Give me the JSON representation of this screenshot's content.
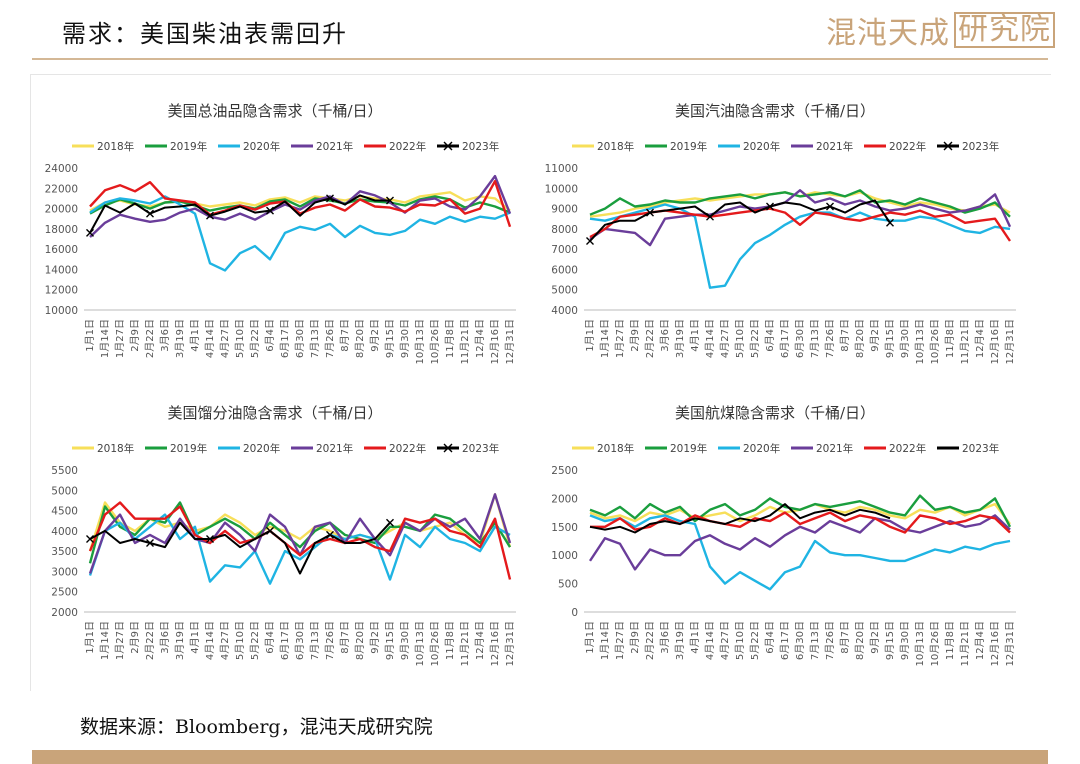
{
  "header": {
    "title": "需求：美国柴油表需回升",
    "logo_text": "混沌天成",
    "logo_boxed_text": "研究院",
    "accent_color": "#c9a47a"
  },
  "footer": {
    "source": "数据来源：Bloomberg，混沌天成研究院"
  },
  "series_colors": {
    "2018年": "#f7df5a",
    "2019年": "#1a9e3e",
    "2020年": "#1fb4e3",
    "2021年": "#6a3d9a",
    "2022年": "#e41a1c",
    "2023年": "#000000"
  },
  "chart_data": [
    {
      "type": "line",
      "title": "美国总油品隐含需求（千桶/日）",
      "ylim": [
        10000,
        24000
      ],
      "yticks": [
        10000,
        12000,
        14000,
        16000,
        18000,
        20000,
        22000,
        24000
      ],
      "grid": false,
      "legend": "top",
      "categories": [
        "1月1日",
        "1月14日",
        "1月27日",
        "2月9日",
        "2月22日",
        "3月6日",
        "3月19日",
        "4月1日",
        "4月14日",
        "4月27日",
        "5月10日",
        "5月22日",
        "6月4日",
        "6月17日",
        "6月30日",
        "7月13日",
        "7月26日",
        "8月7日",
        "8月20日",
        "9月2日",
        "9月15日",
        "9月30日",
        "10月13日",
        "10月26日",
        "11月8日",
        "11月21日",
        "12月4日",
        "12月16日",
        "12月31日"
      ],
      "series": [
        {
          "name": "2018年",
          "values": [
            19800,
            20600,
            20800,
            20400,
            20200,
            20600,
            20800,
            20500,
            20200,
            20400,
            20600,
            20300,
            20900,
            21100,
            20600,
            21200,
            21000,
            20800,
            21200,
            21000,
            20900,
            20600,
            21200,
            21400,
            21600,
            20800,
            21200,
            21000,
            19800
          ]
        },
        {
          "name": "2019年",
          "values": [
            19500,
            20300,
            20900,
            20500,
            20000,
            20600,
            20700,
            20300,
            19800,
            20100,
            20300,
            20000,
            20700,
            20900,
            20200,
            21000,
            20800,
            20500,
            20900,
            20700,
            20600,
            20300,
            20900,
            21200,
            20900,
            20100,
            20600,
            20200,
            19600
          ]
        },
        {
          "name": "2020年",
          "values": [
            19600,
            20600,
            21000,
            20800,
            20500,
            21200,
            20400,
            19500,
            14600,
            13900,
            15600,
            16300,
            15000,
            17600,
            18200,
            17900,
            18500,
            17200,
            18300,
            17600,
            17400,
            17800,
            18900,
            18500,
            19200,
            18700,
            19200,
            19000,
            19600
          ]
        },
        {
          "name": "2021年",
          "values": [
            17200,
            18600,
            19400,
            19000,
            18700,
            18900,
            19600,
            20000,
            19200,
            18900,
            19500,
            18900,
            19700,
            20400,
            19900,
            20800,
            21200,
            20400,
            21700,
            21300,
            20600,
            19600,
            20800,
            21000,
            20200,
            19900,
            21200,
            23200,
            19500
          ]
        },
        {
          "name": "2022年",
          "values": [
            20200,
            21800,
            22300,
            21700,
            22600,
            21000,
            20800,
            20600,
            19400,
            19800,
            20300,
            19900,
            20500,
            20700,
            19500,
            20100,
            20400,
            19800,
            20900,
            20200,
            20100,
            19700,
            20400,
            20300,
            20900,
            19500,
            20000,
            22700,
            18200
          ]
        },
        {
          "name": "2023年",
          "values": [
            17600,
            20300,
            19600,
            20500,
            19500,
            20100,
            20200,
            20400,
            19300,
            19700,
            20200,
            19600,
            19800,
            20700,
            19300,
            20600,
            21000,
            20400,
            21300,
            20800,
            20800,
            null,
            null,
            null,
            null,
            null,
            null,
            null,
            null
          ]
        }
      ]
    },
    {
      "type": "line",
      "title": "美国汽油隐含需求（千桶/日）",
      "ylim": [
        4000,
        11000
      ],
      "yticks": [
        4000,
        5000,
        6000,
        7000,
        8000,
        9000,
        10000,
        11000
      ],
      "grid": false,
      "legend": "top",
      "categories": [
        "1月1日",
        "1月14日",
        "1月27日",
        "2月9日",
        "2月22日",
        "3月6日",
        "3月19日",
        "4月1日",
        "4月14日",
        "4月27日",
        "5月10日",
        "5月22日",
        "6月4日",
        "6月17日",
        "6月30日",
        "7月13日",
        "7月26日",
        "8月7日",
        "8月20日",
        "9月2日",
        "9月15日",
        "9月30日",
        "10月13日",
        "10月26日",
        "11月8日",
        "11月21日",
        "12月4日",
        "12月16日",
        "12月31日"
      ],
      "series": [
        {
          "name": "2018年",
          "values": [
            8600,
            8700,
            8800,
            9000,
            9100,
            9300,
            9400,
            9500,
            9400,
            9500,
            9600,
            9700,
            9700,
            9800,
            9600,
            9800,
            9700,
            9600,
            9800,
            9500,
            9300,
            9100,
            9300,
            9200,
            9000,
            8900,
            9100,
            9200,
            8800
          ]
        },
        {
          "name": "2019年",
          "values": [
            8700,
            9000,
            9500,
            9100,
            9200,
            9400,
            9300,
            9300,
            9500,
            9600,
            9700,
            9500,
            9700,
            9800,
            9600,
            9700,
            9800,
            9600,
            9900,
            9300,
            9400,
            9200,
            9500,
            9300,
            9100,
            8800,
            9000,
            9300,
            8600
          ]
        },
        {
          "name": "2020年",
          "values": [
            8500,
            8400,
            8600,
            8800,
            9000,
            9200,
            9000,
            8600,
            5100,
            5200,
            6500,
            7300,
            7700,
            8200,
            8600,
            8800,
            8800,
            8500,
            8800,
            8500,
            8400,
            8400,
            8600,
            8500,
            8200,
            7900,
            7800,
            8100,
            8000
          ]
        },
        {
          "name": "2021年",
          "values": [
            7500,
            8000,
            7900,
            7800,
            7200,
            8500,
            8600,
            8700,
            8700,
            8900,
            9100,
            9000,
            9100,
            9300,
            9900,
            9300,
            9500,
            9200,
            9400,
            9100,
            8900,
            9000,
            9200,
            9000,
            8800,
            8900,
            9100,
            9700,
            8100
          ]
        },
        {
          "name": "2022年",
          "values": [
            7600,
            8000,
            8600,
            8700,
            8800,
            8900,
            8800,
            8700,
            8600,
            8700,
            8800,
            8900,
            9000,
            8800,
            8200,
            8800,
            8700,
            8500,
            8400,
            8600,
            8800,
            8700,
            8900,
            8600,
            8700,
            8300,
            8400,
            8500,
            7400
          ]
        },
        {
          "name": "2023年",
          "values": [
            7400,
            8200,
            8400,
            8400,
            8800,
            8900,
            9000,
            9100,
            8600,
            9200,
            9300,
            8800,
            9100,
            9300,
            9200,
            8900,
            9100,
            8800,
            9200,
            9400,
            8300,
            null,
            null,
            null,
            null,
            null,
            null,
            null,
            null
          ]
        }
      ]
    },
    {
      "type": "line",
      "title": "美国馏分油隐含需求（千桶/日）",
      "ylim": [
        2000,
        5500
      ],
      "yticks": [
        2000,
        2500,
        3000,
        3500,
        4000,
        4500,
        5000,
        5500
      ],
      "grid": false,
      "legend": "top",
      "categories": [
        "1月1日",
        "1月14日",
        "1月27日",
        "2月9日",
        "2月22日",
        "3月6日",
        "3月19日",
        "4月1日",
        "4月14日",
        "4月27日",
        "5月10日",
        "5月22日",
        "6月4日",
        "6月17日",
        "6月30日",
        "7月13日",
        "7月26日",
        "8月7日",
        "8月20日",
        "9月2日",
        "9月15日",
        "9月30日",
        "10月13日",
        "10月26日",
        "11月8日",
        "11月21日",
        "12月4日",
        "12月16日",
        "12月31日"
      ],
      "series": [
        {
          "name": "2018年",
          "values": [
            3500,
            4700,
            4200,
            4000,
            4300,
            4100,
            4200,
            4000,
            4100,
            4400,
            4200,
            3900,
            4100,
            4000,
            3800,
            4100,
            4000,
            3800,
            3900,
            3800,
            4000,
            4200,
            4000,
            4100,
            4200,
            3900,
            3700,
            4900,
            3600
          ]
        },
        {
          "name": "2019年",
          "values": [
            3200,
            4600,
            4100,
            3900,
            4300,
            4200,
            4700,
            3900,
            4100,
            4300,
            4100,
            3800,
            4200,
            3900,
            3600,
            4000,
            4200,
            3900,
            3800,
            3700,
            4100,
            4100,
            4000,
            4400,
            4300,
            4000,
            3700,
            4200,
            3600
          ]
        },
        {
          "name": "2020年",
          "values": [
            2900,
            4000,
            4200,
            3800,
            4100,
            4400,
            3800,
            4100,
            2750,
            3150,
            3100,
            3500,
            2700,
            3500,
            3300,
            3600,
            3900,
            3800,
            3900,
            3800,
            2800,
            3900,
            3600,
            4100,
            3800,
            3700,
            3500,
            4100,
            3900
          ]
        },
        {
          "name": "2021年",
          "values": [
            2950,
            4000,
            4400,
            3700,
            3900,
            3700,
            4300,
            3800,
            3700,
            4200,
            3900,
            3500,
            4400,
            4100,
            3400,
            4100,
            4200,
            3700,
            4300,
            3800,
            3400,
            4200,
            4000,
            4300,
            4100,
            4300,
            3800,
            4900,
            3700
          ]
        },
        {
          "name": "2022年",
          "values": [
            3500,
            4400,
            4700,
            4300,
            4300,
            4300,
            4600,
            3900,
            3700,
            4000,
            3700,
            3800,
            4000,
            3700,
            3400,
            3700,
            3800,
            3700,
            3800,
            3600,
            3500,
            4300,
            4200,
            4300,
            4000,
            3900,
            3600,
            4300,
            2800
          ]
        },
        {
          "name": "2023年",
          "values": [
            3800,
            4000,
            3700,
            3800,
            3700,
            3600,
            4200,
            3800,
            3800,
            3900,
            3600,
            3800,
            4000,
            3700,
            2950,
            3700,
            3900,
            3700,
            3700,
            3800,
            4200,
            null,
            null,
            null,
            null,
            null,
            null,
            null,
            null
          ]
        }
      ]
    },
    {
      "type": "line",
      "title": "美国航煤隐含需求（千桶/日）",
      "ylim": [
        0,
        2500
      ],
      "yticks": [
        0,
        500,
        1000,
        1500,
        2000,
        2500
      ],
      "grid": false,
      "legend": "top",
      "categories": [
        "1月1日",
        "1月14日",
        "1月27日",
        "2月9日",
        "2月22日",
        "3月6日",
        "3月19日",
        "4月1日",
        "4月14日",
        "4月27日",
        "5月10日",
        "5月22日",
        "6月4日",
        "6月17日",
        "6月30日",
        "7月13日",
        "7月26日",
        "8月7日",
        "8月20日",
        "9月2日",
        "9月15日",
        "9月30日",
        "10月13日",
        "10月26日",
        "11月8日",
        "11月21日",
        "12月4日",
        "12月16日",
        "12月31日"
      ],
      "series": [
        {
          "name": "2018年",
          "values": [
            1750,
            1650,
            1700,
            1600,
            1750,
            1700,
            1800,
            1650,
            1700,
            1750,
            1600,
            1700,
            1850,
            1750,
            1800,
            1900,
            1800,
            1750,
            1850,
            1800,
            1700,
            1650,
            1800,
            1750,
            1850,
            1700,
            1800,
            1900,
            1550
          ]
        },
        {
          "name": "2019年",
          "values": [
            1800,
            1700,
            1850,
            1650,
            1900,
            1750,
            1850,
            1600,
            1800,
            1900,
            1700,
            1800,
            2000,
            1850,
            1800,
            1900,
            1850,
            1900,
            1950,
            1850,
            1750,
            1700,
            2050,
            1800,
            1850,
            1750,
            1800,
            2000,
            1500
          ]
        },
        {
          "name": "2020年",
          "values": [
            1700,
            1600,
            1650,
            1500,
            1650,
            1700,
            1600,
            1550,
            800,
            500,
            700,
            550,
            400,
            700,
            800,
            1250,
            1050,
            1000,
            1000,
            950,
            900,
            900,
            1000,
            1100,
            1050,
            1150,
            1100,
            1200,
            1250
          ]
        },
        {
          "name": "2021年",
          "values": [
            900,
            1300,
            1200,
            750,
            1100,
            1000,
            1000,
            1250,
            1350,
            1200,
            1100,
            1300,
            1150,
            1350,
            1500,
            1400,
            1600,
            1500,
            1400,
            1650,
            1600,
            1450,
            1400,
            1500,
            1600,
            1500,
            1550,
            1700,
            1450
          ]
        },
        {
          "name": "2022年",
          "values": [
            1500,
            1500,
            1650,
            1450,
            1500,
            1650,
            1550,
            1700,
            1600,
            1550,
            1500,
            1650,
            1600,
            1750,
            1550,
            1650,
            1750,
            1600,
            1700,
            1650,
            1500,
            1400,
            1700,
            1650,
            1550,
            1600,
            1700,
            1650,
            1400
          ]
        },
        {
          "name": "2023年",
          "values": [
            1500,
            1450,
            1500,
            1400,
            1550,
            1600,
            1550,
            1650,
            1600,
            1550,
            1650,
            1600,
            1700,
            1900,
            1650,
            1750,
            1800,
            1700,
            1800,
            1750,
            1650,
            null,
            null,
            null,
            null,
            null,
            null,
            null,
            null
          ]
        }
      ]
    }
  ]
}
